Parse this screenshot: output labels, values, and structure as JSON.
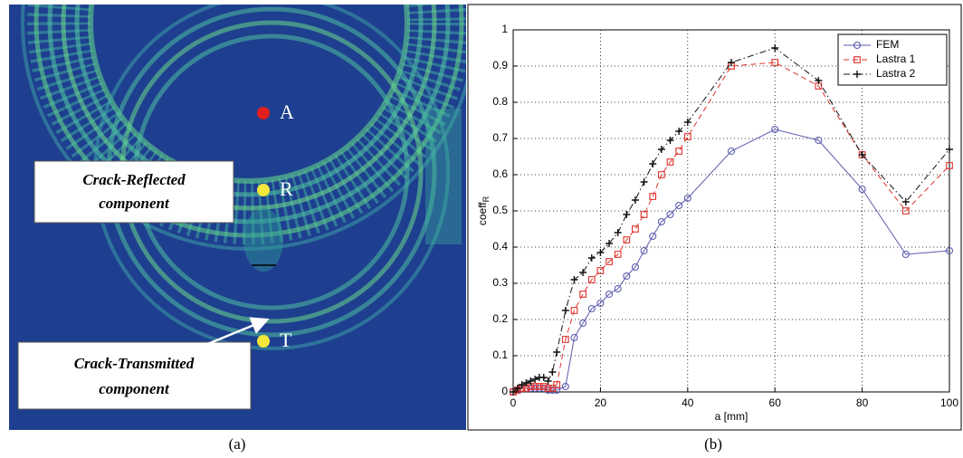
{
  "panel_a": {
    "points": [
      {
        "label": "A"
      },
      {
        "label": "R"
      },
      {
        "label": "T"
      }
    ],
    "callouts": [
      [
        "Crack-Reflected",
        "component"
      ],
      [
        "Crack-Transmitted",
        "component"
      ]
    ],
    "caption": "(a)"
  },
  "chart_data": {
    "type": "line",
    "caption": "(b)",
    "xlabel": "a [mm]",
    "ylabel": "coeff",
    "ylabel_subscript": "R",
    "x": [
      0,
      1,
      2,
      3,
      4,
      5,
      6,
      7,
      8,
      9,
      10,
      12,
      14,
      16,
      18,
      20,
      22,
      24,
      26,
      28,
      30,
      32,
      34,
      36,
      38,
      40,
      50,
      60,
      70,
      80,
      90,
      100
    ],
    "series": [
      {
        "name": "FEM",
        "color": "#5b5bb0",
        "line_style": "solid",
        "marker": "circle",
        "values": [
          0,
          0.005,
          0.01,
          0.01,
          0.01,
          0.01,
          0.01,
          0.01,
          0.005,
          0.005,
          0.005,
          0.015,
          0.15,
          0.19,
          0.23,
          0.245,
          0.27,
          0.285,
          0.32,
          0.345,
          0.39,
          0.43,
          0.47,
          0.49,
          0.515,
          0.535,
          0.665,
          0.725,
          0.695,
          0.56,
          0.38,
          0.39
        ]
      },
      {
        "name": "Lastra 1",
        "color": "#e0302a",
        "line_style": "dashed",
        "marker": "square",
        "values": [
          0,
          0.005,
          0.01,
          0.01,
          0.015,
          0.015,
          0.015,
          0.015,
          0.01,
          0.01,
          0.02,
          0.145,
          0.225,
          0.27,
          0.31,
          0.335,
          0.36,
          0.38,
          0.42,
          0.45,
          0.49,
          0.54,
          0.6,
          0.635,
          0.665,
          0.705,
          0.9,
          0.91,
          0.845,
          0.655,
          0.5,
          0.625
        ]
      },
      {
        "name": "Lastra 2",
        "color": "#111111",
        "line_style": "dashdot",
        "marker": "plus",
        "values": [
          0,
          0.01,
          0.02,
          0.025,
          0.03,
          0.035,
          0.04,
          0.04,
          0.03,
          0.055,
          0.11,
          0.225,
          0.31,
          0.33,
          0.37,
          0.385,
          0.41,
          0.44,
          0.49,
          0.53,
          0.58,
          0.63,
          0.67,
          0.695,
          0.72,
          0.745,
          0.91,
          0.95,
          0.86,
          0.655,
          0.525,
          0.67
        ]
      }
    ],
    "xlim": [
      0,
      100
    ],
    "xticks": [
      0,
      20,
      40,
      60,
      80,
      100
    ],
    "ylim": [
      0,
      1
    ],
    "yticks": [
      0,
      0.1,
      0.2,
      0.3,
      0.4,
      0.5,
      0.6,
      0.7,
      0.8,
      0.9,
      1
    ],
    "grid": true,
    "legend": "upper right"
  }
}
